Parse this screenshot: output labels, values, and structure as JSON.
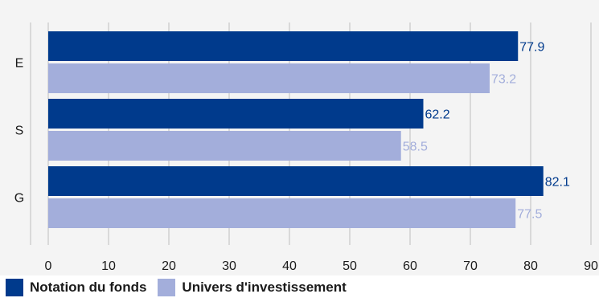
{
  "chart_data": {
    "type": "bar",
    "orientation": "horizontal",
    "categories": [
      "E",
      "S",
      "G"
    ],
    "series": [
      {
        "name": "Notation du fonds",
        "color": "#003a8c",
        "values": [
          77.9,
          62.2,
          82.1
        ]
      },
      {
        "name": "Univers d'investissement",
        "color": "#a3aedb",
        "values": [
          73.2,
          58.5,
          77.5
        ]
      }
    ],
    "xlim": [
      0,
      90
    ],
    "xticks": [
      0,
      10,
      20,
      30,
      40,
      50,
      60,
      70,
      80,
      90
    ],
    "grid": true,
    "data_labels": true,
    "legend_position": "bottom-left",
    "background": "#f4f4f4",
    "grid_color": "#d9d9d9"
  }
}
